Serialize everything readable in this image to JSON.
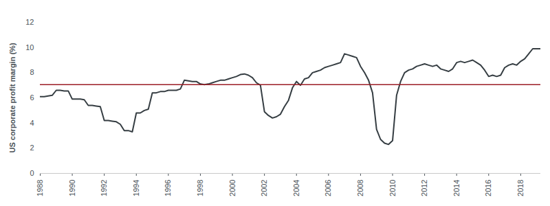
{
  "chart_data": {
    "type": "line",
    "y_label": "US corporate profit margin (%)",
    "color": "#353d42",
    "reference_line": {
      "value": 7.05,
      "color": "#9b1c24"
    },
    "x": [
      1988,
      1988.25,
      1988.5,
      1988.75,
      1989,
      1989.25,
      1989.5,
      1989.75,
      1990,
      1990.25,
      1990.5,
      1990.75,
      1991,
      1991.25,
      1991.5,
      1991.75,
      1992,
      1992.25,
      1992.5,
      1992.75,
      1993,
      1993.25,
      1993.5,
      1993.75,
      1994,
      1994.25,
      1994.5,
      1994.75,
      1995,
      1995.25,
      1995.5,
      1995.75,
      1996,
      1996.25,
      1996.5,
      1996.75,
      1997,
      1997.25,
      1997.5,
      1997.75,
      1998,
      1998.25,
      1998.5,
      1998.75,
      1999,
      1999.25,
      1999.5,
      1999.75,
      2000,
      2000.25,
      2000.5,
      2000.75,
      2001,
      2001.25,
      2001.5,
      2001.75,
      2002,
      2002.25,
      2002.5,
      2002.75,
      2003,
      2003.25,
      2003.5,
      2003.75,
      2004,
      2004.25,
      2004.5,
      2004.75,
      2005,
      2005.25,
      2005.5,
      2005.75,
      2006,
      2006.25,
      2006.5,
      2006.75,
      2007,
      2007.25,
      2007.5,
      2007.75,
      2008,
      2008.25,
      2008.5,
      2008.75,
      2009,
      2009.25,
      2009.5,
      2009.75,
      2010,
      2010.25,
      2010.5,
      2010.75,
      2011,
      2011.25,
      2011.5,
      2011.75,
      2012,
      2012.25,
      2012.5,
      2012.75,
      2013,
      2013.25,
      2013.5,
      2013.75,
      2014,
      2014.25,
      2014.5,
      2014.75,
      2015,
      2015.25,
      2015.5,
      2015.75,
      2016,
      2016.25,
      2016.5,
      2016.75,
      2017,
      2017.25,
      2017.5,
      2017.75,
      2018,
      2018.25,
      2018.5,
      2018.75,
      2019,
      2019.25
    ],
    "values": [
      6.1,
      6.1,
      6.15,
      6.2,
      6.6,
      6.6,
      6.55,
      6.55,
      5.9,
      5.9,
      5.9,
      5.85,
      5.4,
      5.4,
      5.35,
      5.3,
      4.2,
      4.2,
      4.15,
      4.1,
      3.9,
      3.4,
      3.4,
      3.3,
      4.8,
      4.8,
      5.0,
      5.1,
      6.4,
      6.4,
      6.5,
      6.5,
      6.6,
      6.6,
      6.6,
      6.7,
      7.4,
      7.35,
      7.3,
      7.3,
      7.1,
      7.05,
      7.1,
      7.2,
      7.3,
      7.4,
      7.4,
      7.5,
      7.6,
      7.7,
      7.85,
      7.9,
      7.8,
      7.6,
      7.2,
      7.0,
      4.9,
      4.6,
      4.4,
      4.5,
      4.7,
      5.3,
      5.8,
      6.8,
      7.3,
      7.0,
      7.5,
      7.6,
      8.0,
      8.1,
      8.2,
      8.4,
      8.5,
      8.6,
      8.7,
      8.8,
      9.5,
      9.4,
      9.3,
      9.2,
      8.5,
      8.0,
      7.4,
      6.4,
      3.5,
      2.7,
      2.4,
      2.3,
      2.6,
      6.2,
      7.3,
      8.0,
      8.2,
      8.3,
      8.5,
      8.6,
      8.7,
      8.6,
      8.5,
      8.6,
      8.3,
      8.2,
      8.1,
      8.3,
      8.8,
      8.9,
      8.8,
      8.9,
      9.0,
      8.8,
      8.6,
      8.2,
      7.7,
      7.8,
      7.7,
      7.8,
      8.4,
      8.6,
      8.7,
      8.6,
      8.9,
      9.1,
      9.5,
      9.9,
      9.9,
      9.9
    ],
    "xlim": [
      1988,
      2019.25
    ],
    "xticks": [
      1988,
      1990,
      1992,
      1994,
      1996,
      1998,
      2000,
      2002,
      2004,
      2006,
      2008,
      2010,
      2012,
      2014,
      2016,
      2018
    ],
    "ylim": [
      0,
      12
    ],
    "yticks": [
      0,
      2,
      4,
      6,
      8,
      10,
      12
    ],
    "grid": false
  }
}
